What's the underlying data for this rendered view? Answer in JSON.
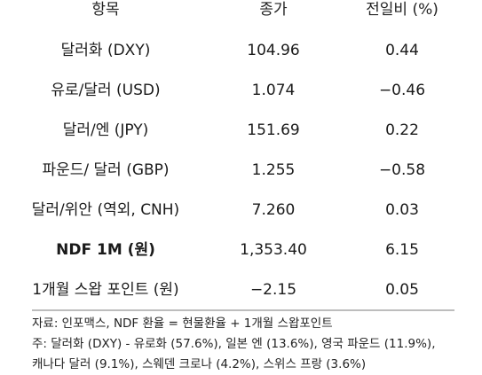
{
  "header": {
    "item": "항목",
    "price": "종가",
    "change": "전일비 (%)"
  },
  "rows": [
    {
      "item": "달러화 (DXY)",
      "price": "104.96",
      "change": "0.44",
      "bold": false
    },
    {
      "item": "유로/달러 (USD)",
      "price": "1.074",
      "change": "−0.46",
      "bold": false
    },
    {
      "item": "달러/엔 (JPY)",
      "price": "151.69",
      "change": "0.22",
      "bold": false
    },
    {
      "item": "파운드/ 달러 (GBP)",
      "price": "1.255",
      "change": "−0.58",
      "bold": false
    },
    {
      "item": "달러/위안 (역외, CNH)",
      "price": "7.260",
      "change": "0.03",
      "bold": false
    },
    {
      "item": "NDF 1M (원)",
      "price": "1,353.40",
      "change": "6.15",
      "bold": true
    },
    {
      "item": "1개월 스왑 포인트 (원)",
      "price": "−2.15",
      "change": "0.05",
      "bold": false
    }
  ],
  "notes": {
    "source": "자료: 인포맥스, NDF 환율 = 현물환율 + 1개월 스왑포인트",
    "note_line1": "주: 달러화 (DXY) - 유로화 (57.6%), 일본 엔 (13.6%), 영국 파운드 (11.9%),",
    "note_line2": "캐나다 달러 (9.1%), 스웨덴 크로나 (4.2%), 스위스 프랑 (3.6%)"
  }
}
